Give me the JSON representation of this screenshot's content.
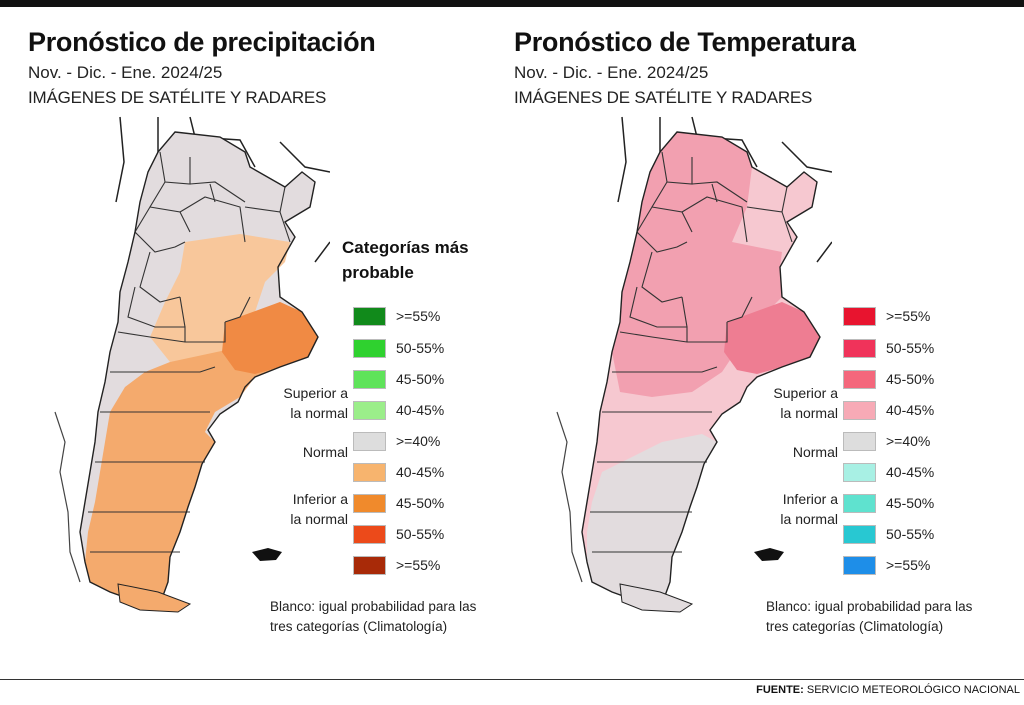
{
  "source": {
    "label": "FUENTE:",
    "text": "SERVICIO METEOROLÓGICO NACIONAL"
  },
  "panels": [
    {
      "title": "Pronóstico de precipitación",
      "subtitle": "Nov. - Dic. - Ene. 2024/25",
      "subtitle2": "IMÁGENES DE SATÉLITE Y RADARES",
      "legend_title_line1": "Categorías más",
      "legend_title_line2": "probable",
      "superior_line1": "Superior a",
      "superior_line2": "la normal",
      "normal": "Normal",
      "inferior_line1": "Inferior a",
      "inferior_line2": "la normal",
      "note_line1": "Blanco: igual probabilidad para las",
      "note_line2": "tres categorías (Climatología)",
      "legend": [
        {
          "label": ">=55%",
          "color": "#118a1b"
        },
        {
          "label": "50-55%",
          "color": "#2fd12f"
        },
        {
          "label": "45-50%",
          "color": "#5fe35a"
        },
        {
          "label": "40-45%",
          "color": "#9bee8a"
        },
        {
          "label": ">=40%",
          "color": "#dddddd"
        },
        {
          "label": "40-45%",
          "color": "#f7b46e"
        },
        {
          "label": "45-50%",
          "color": "#f08a2c"
        },
        {
          "label": "50-55%",
          "color": "#ec4a1a"
        },
        {
          "label": ">=55%",
          "color": "#a82a08"
        }
      ],
      "map_colors": {
        "neutral": "#e2dcde",
        "light": "#f8c79b",
        "medium": "#f4aa6d",
        "strong": "#f08a44"
      }
    },
    {
      "title": "Pronóstico de Temperatura",
      "subtitle": "Nov. - Dic. - Ene. 2024/25",
      "subtitle2": "IMÁGENES DE SATÉLITE Y RADARES",
      "superior_line1": "Superior a",
      "superior_line2": "la normal",
      "normal": "Normal",
      "inferior_line1": "Inferior a",
      "inferior_line2": "la normal",
      "note_line1": "Blanco: igual probabilidad para las",
      "note_line2": "tres categorías (Climatología)",
      "legend": [
        {
          "label": ">=55%",
          "color": "#e8142f"
        },
        {
          "label": "50-55%",
          "color": "#f0335a"
        },
        {
          "label": "45-50%",
          "color": "#f4677c"
        },
        {
          "label": "40-45%",
          "color": "#f7aab6"
        },
        {
          "label": ">=40%",
          "color": "#dddddd"
        },
        {
          "label": "40-45%",
          "color": "#a8f0e4"
        },
        {
          "label": "45-50%",
          "color": "#5fe2cf"
        },
        {
          "label": "50-55%",
          "color": "#28c8d2"
        },
        {
          "label": ">=55%",
          "color": "#1e8ee8"
        }
      ],
      "map_colors": {
        "neutral": "#e2dcde",
        "light": "#f6c8d0",
        "medium": "#f2a0b0",
        "strong": "#ee7d92"
      }
    }
  ]
}
